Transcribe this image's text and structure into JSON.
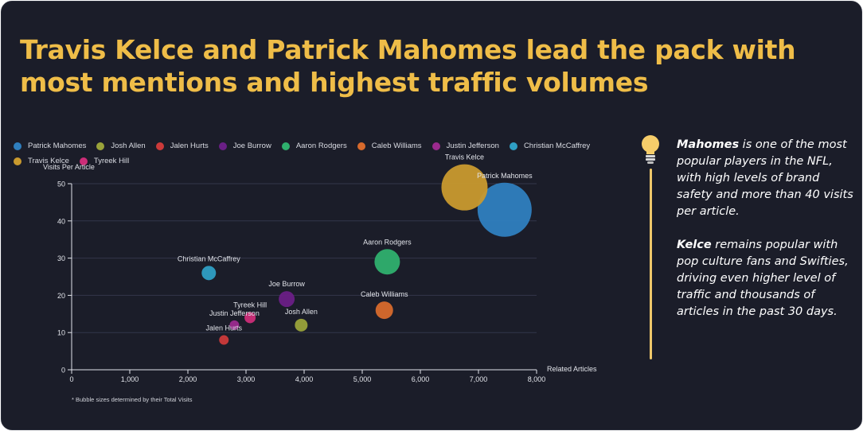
{
  "title": "Travis Kelce and Patrick Mahomes lead the pack with most mentions and highest traffic volumes",
  "insight": {
    "p1_bold": "Mahomes",
    "p1_text": " is one of the most popular players in the NFL, with high levels of brand safety and more than 40 visits per article.",
    "p2_bold": "Kelce",
    "p2_text": " remains popular with pop culture fans and Swifties, driving even higher level of traffic and thousands of articles in the past 30 days.",
    "icon": "lightbulb-icon"
  },
  "chart_data": {
    "type": "scatter",
    "subtype": "bubble",
    "xlabel": "Related Articles",
    "ylabel": "Visits Per Article",
    "xlim": [
      0,
      8000
    ],
    "ylim": [
      0,
      50
    ],
    "x_ticks": [
      "0",
      "1,000",
      "2,000",
      "3,000",
      "4,000",
      "5,000",
      "6,000",
      "7,000",
      "8,000"
    ],
    "y_ticks": [
      "0",
      "10",
      "20",
      "30",
      "40",
      "50"
    ],
    "x_tick_values": [
      0,
      1000,
      2000,
      3000,
      4000,
      5000,
      6000,
      7000,
      8000
    ],
    "y_tick_values": [
      0,
      10,
      20,
      30,
      40,
      50
    ],
    "grid": "horizontal",
    "legend_position": "top",
    "size_note": "* Bubble sizes determined by their Total Visits",
    "series": [
      {
        "name": "Patrick Mahomes",
        "color": "#2f7fbf",
        "x": 7450,
        "y": 43,
        "size": 34
      },
      {
        "name": "Josh Allen",
        "color": "#9aa33a",
        "x": 3950,
        "y": 12,
        "size": 8
      },
      {
        "name": "Jalen Hurts",
        "color": "#cc3a3a",
        "x": 2620,
        "y": 8,
        "size": 6
      },
      {
        "name": "Joe Burrow",
        "color": "#6a1f86",
        "x": 3700,
        "y": 19,
        "size": 10
      },
      {
        "name": "Aaron Rodgers",
        "color": "#2fb06e",
        "x": 5430,
        "y": 29,
        "size": 16
      },
      {
        "name": "Caleb Williams",
        "color": "#d76a2c",
        "x": 5380,
        "y": 16,
        "size": 11
      },
      {
        "name": "Justin Jefferson",
        "color": "#9b2a8e",
        "x": 2800,
        "y": 12,
        "size": 6
      },
      {
        "name": "Christian McCaffrey",
        "color": "#2f9fc4",
        "x": 2360,
        "y": 26,
        "size": 9
      },
      {
        "name": "Travis Kelce",
        "color": "#c99a2e",
        "x": 6760,
        "y": 49,
        "size": 29
      },
      {
        "name": "Tyreek Hill",
        "color": "#cc2d78",
        "x": 3070,
        "y": 14,
        "size": 7
      }
    ]
  }
}
